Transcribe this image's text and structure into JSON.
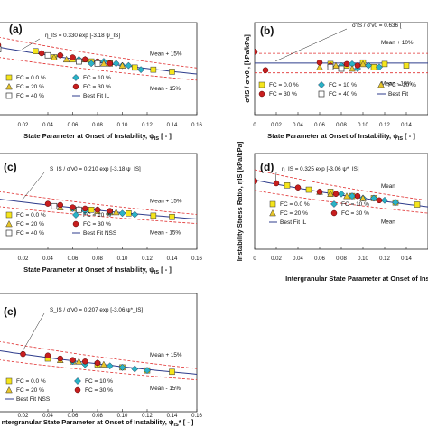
{
  "colors": {
    "fc0": "#f5e51c",
    "fc10": "#2ab3c6",
    "fc20": "#e8c62a",
    "fc30": "#c81e1e",
    "fc40": "#ffffff",
    "best_fit": "#2f3d8c",
    "bounds": "#e03030"
  },
  "marker_shapes": {
    "fc0": "square",
    "fc10": "diamond",
    "fc20": "triangle",
    "fc30": "circle",
    "fc40": "square-open"
  },
  "chart_data": [
    {
      "id": "a",
      "panel_label": "(a)",
      "type": "scatter",
      "xlabel_main": "State Parameter at Onset of Instability, ψ",
      "xlabel_sub": "IS",
      "xlabel_tail": " [ - ]",
      "ylabel": "",
      "xlim": [
        0,
        0.16
      ],
      "ylim": [
        0.0,
        0.45
      ],
      "xticks": [
        "0.02",
        "0.04",
        "0.06",
        "0.08",
        "0.10",
        "0.12",
        "0.14",
        "0.16"
      ],
      "equation": "η_IS = 0.330 exp [-3.18 ψ_IS]",
      "fit": {
        "a": 0.33,
        "b": -3.18
      },
      "upper_label": "Mean + 15%",
      "lower_label": "Mean - 15%",
      "band": 0.15,
      "legend": [
        "FC = 0.0 %",
        "FC = 10 %",
        "FC = 20 %",
        "FC = 30 %",
        "FC = 40 %",
        "Best Fit IL"
      ],
      "series": [
        {
          "name": "FC = 0.0 %",
          "key": "fc0",
          "x": [
            0.03,
            0.045,
            0.06,
            0.075,
            0.09,
            0.11,
            0.125,
            0.14
          ],
          "y": [
            0.31,
            0.28,
            0.27,
            0.26,
            0.25,
            0.23,
            0.22,
            0.21
          ]
        },
        {
          "name": "FC = 10 %",
          "key": "fc10",
          "x": [
            0.05,
            0.065,
            0.075,
            0.085,
            0.095,
            0.1,
            0.105,
            0.115
          ],
          "y": [
            0.29,
            0.27,
            0.25,
            0.26,
            0.25,
            0.24,
            0.24,
            0.22
          ]
        },
        {
          "name": "FC = 20 %",
          "key": "fc20",
          "x": [
            0.045,
            0.055,
            0.07,
            0.085,
            0.1
          ],
          "y": [
            0.28,
            0.27,
            0.27,
            0.25,
            0.24
          ]
        },
        {
          "name": "FC = 30 %",
          "key": "fc30",
          "x": [
            0.0,
            0.035,
            0.05,
            0.06,
            0.07,
            0.08,
            0.09
          ],
          "y": [
            0.34,
            0.3,
            0.29,
            0.28,
            0.27,
            0.26,
            0.25
          ]
        },
        {
          "name": "FC = 40 %",
          "key": "fc40",
          "x": [
            0.0,
            0.04,
            0.065,
            0.08
          ],
          "y": [
            0.32,
            0.29,
            0.26,
            0.25
          ]
        }
      ]
    },
    {
      "id": "b",
      "panel_label": "(b)",
      "type": "scatter",
      "xlabel_main": "State Parameter at Onset of Instability, ψ",
      "xlabel_sub": "IS",
      "xlabel_tail": " [ - ]",
      "ylabel": "σ'IS / σ'v0 , [kPa/kPa]",
      "xlim": [
        0,
        0.16
      ],
      "ylim": [
        0.3,
        0.9
      ],
      "xticks": [
        "0",
        "0.02",
        "0.04",
        "0.06",
        "0.08",
        "0.10",
        "0.12",
        "0.14"
      ],
      "equation": "σ'IS / σ'v0 = 0.636 [",
      "fit": {
        "a": 0.636,
        "b": 0
      },
      "upper_label": "Mean + 10%",
      "lower_label": "Mean - 10%",
      "band": 0.1,
      "legend": [
        "FC = 0.0 %",
        "FC = 10 %",
        "FC = 20 %",
        "FC = 30 %",
        "FC = 40 %",
        "Best Fit"
      ],
      "series": [
        {
          "name": "FC = 0.0 %",
          "key": "fc0",
          "x": [
            0.07,
            0.085,
            0.1,
            0.11,
            0.12,
            0.14
          ],
          "y": [
            0.63,
            0.62,
            0.64,
            0.61,
            0.63,
            0.62
          ]
        },
        {
          "name": "FC = 10 %",
          "key": "fc10",
          "x": [
            0.08,
            0.09,
            0.095,
            0.105,
            0.115
          ],
          "y": [
            0.62,
            0.63,
            0.6,
            0.62,
            0.61
          ]
        },
        {
          "name": "FC = 20 %",
          "key": "fc20",
          "x": [
            0.06,
            0.075,
            0.09,
            0.1
          ],
          "y": [
            0.61,
            0.62,
            0.6,
            0.63
          ]
        },
        {
          "name": "FC = 30 %",
          "key": "fc30",
          "x": [
            0.0,
            0.01,
            0.06,
            0.07,
            0.085,
            0.095
          ],
          "y": [
            0.71,
            0.59,
            0.64,
            0.62,
            0.63,
            0.62
          ]
        },
        {
          "name": "FC = 40 %",
          "key": "fc40",
          "x": [
            0.07,
            0.08
          ],
          "y": [
            0.61,
            0.6
          ]
        }
      ]
    },
    {
      "id": "c",
      "panel_label": "(c)",
      "type": "scatter",
      "xlabel_main": "State Parameter at Onset of Instability, ψ",
      "xlabel_sub": "IS",
      "xlabel_tail": " [ - ]",
      "ylabel": "",
      "xlim": [
        0,
        0.16
      ],
      "ylim": [
        0.0,
        0.4
      ],
      "xticks": [
        "0.02",
        "0.04",
        "0.06",
        "0.08",
        "0.10",
        "0.12",
        "0.14",
        "0.16"
      ],
      "equation": "S_IS / σ'v0 = 0.210 exp [-3.18 ψ_IS]",
      "fit": {
        "a": 0.21,
        "b": -3.18
      },
      "upper_label": "Mean + 15%",
      "lower_label": "Mean - 15%",
      "band": 0.15,
      "legend": [
        "FC = 0.0 %",
        "FC = 10 %",
        "FC = 20 %",
        "FC = 30 %",
        "FC = 40 %",
        "Best Fit NSS"
      ],
      "series": [
        {
          "name": "FC = 0.0 %",
          "key": "fc0",
          "x": [
            0.045,
            0.06,
            0.075,
            0.09,
            0.105,
            0.125,
            0.14
          ],
          "y": [
            0.18,
            0.17,
            0.165,
            0.155,
            0.15,
            0.14,
            0.135
          ]
        },
        {
          "name": "FC = 10 %",
          "key": "fc10",
          "x": [
            0.06,
            0.07,
            0.08,
            0.09,
            0.1,
            0.11
          ],
          "y": [
            0.17,
            0.16,
            0.165,
            0.155,
            0.15,
            0.145
          ]
        },
        {
          "name": "FC = 20 %",
          "key": "fc20",
          "x": [
            0.05,
            0.065,
            0.08,
            0.095
          ],
          "y": [
            0.175,
            0.17,
            0.16,
            0.155
          ]
        },
        {
          "name": "FC = 30 %",
          "key": "fc30",
          "x": [
            0.04,
            0.05,
            0.06,
            0.07,
            0.08,
            0.09
          ],
          "y": [
            0.19,
            0.185,
            0.175,
            0.17,
            0.165,
            0.16
          ]
        },
        {
          "name": "FC = 40 %",
          "key": "fc40",
          "x": [
            0.045,
            0.065
          ],
          "y": [
            0.18,
            0.165
          ]
        }
      ]
    },
    {
      "id": "d",
      "panel_label": "(d)",
      "type": "scatter",
      "xlabel_main": "Intergranular State Parameter at Onset of Instability",
      "xlabel_sub": "",
      "xlabel_tail": "",
      "ylabel": "Instability Stress Ratio, ηIS [kPa/kPa]",
      "xlim": [
        0,
        0.16
      ],
      "ylim": [
        0.0,
        0.45
      ],
      "xticks": [
        "0",
        "0.02",
        "0.04",
        "0.06",
        "0.08",
        "0.10",
        "0.12",
        "0.14"
      ],
      "equation": "η_IS = 0.325 exp [-3.06 ψ*_IS]",
      "fit": {
        "a": 0.325,
        "b": -3.06
      },
      "upper_label": "Mean",
      "lower_label": "Mean",
      "band": 0.15,
      "legend": [
        "FC = 0.0 %",
        "FC = 10 %",
        "FC = 20 %",
        "FC = 30 %",
        "Best Fit IL"
      ],
      "series": [
        {
          "name": "FC = 0.0 %",
          "key": "fc0",
          "x": [
            0.03,
            0.05,
            0.07,
            0.09,
            0.11,
            0.13,
            0.15
          ],
          "y": [
            0.3,
            0.28,
            0.27,
            0.25,
            0.24,
            0.22,
            0.21
          ]
        },
        {
          "name": "FC = 10 %",
          "key": "fc10",
          "x": [
            0.08,
            0.09,
            0.1,
            0.11,
            0.12,
            0.13
          ],
          "y": [
            0.26,
            0.25,
            0.24,
            0.24,
            0.23,
            0.22
          ]
        },
        {
          "name": "FC = 20 %",
          "key": "fc20",
          "x": [
            0.06,
            0.07,
            0.085,
            0.1
          ],
          "y": [
            0.27,
            0.26,
            0.25,
            0.24
          ]
        },
        {
          "name": "FC = 30 %",
          "key": "fc30",
          "x": [
            0.0,
            0.02,
            0.04,
            0.06,
            0.075,
            0.095,
            0.115
          ],
          "y": [
            0.32,
            0.31,
            0.29,
            0.27,
            0.26,
            0.25,
            0.23
          ]
        }
      ]
    },
    {
      "id": "e",
      "panel_label": "(e)",
      "type": "scatter",
      "xlabel_main": "ntergranular State Parameter at Onset of Instability, ψ",
      "xlabel_sub": "IS",
      "xlabel_tail": "* [ - ]",
      "ylabel": "",
      "xlim": [
        0,
        0.16
      ],
      "ylim": [
        0.0,
        0.4
      ],
      "xticks": [
        "0.02",
        "0.04",
        "0.06",
        "0.08",
        "0.10",
        "0.12",
        "0.14",
        "0.16"
      ],
      "equation": "S_IS / σ'v0 = 0.207 exp [-3.06 ψ*_IS]",
      "fit": {
        "a": 0.207,
        "b": -3.06
      },
      "upper_label": "Mean + 15%",
      "lower_label": "Mean - 15%",
      "band": 0.15,
      "legend": [
        "FC = 0.0 %",
        "FC = 10 %",
        "FC = 20 %",
        "FC = 30 %",
        "Best Fit NSS"
      ],
      "series": [
        {
          "name": "FC = 0.0 %",
          "key": "fc0",
          "x": [
            0.04,
            0.06,
            0.08,
            0.1,
            0.12,
            0.14
          ],
          "y": [
            0.18,
            0.17,
            0.16,
            0.15,
            0.14,
            0.135
          ]
        },
        {
          "name": "FC = 10 %",
          "key": "fc10",
          "x": [
            0.06,
            0.07,
            0.08,
            0.09,
            0.1,
            0.11,
            0.12
          ],
          "y": [
            0.17,
            0.16,
            0.165,
            0.155,
            0.15,
            0.145,
            0.14
          ]
        },
        {
          "name": "FC = 20 %",
          "key": "fc20",
          "x": [
            0.05,
            0.065,
            0.085
          ],
          "y": [
            0.175,
            0.17,
            0.16
          ]
        },
        {
          "name": "FC = 30 %",
          "key": "fc30",
          "x": [
            0.02,
            0.04,
            0.05,
            0.06,
            0.07,
            0.08
          ],
          "y": [
            0.195,
            0.19,
            0.18,
            0.175,
            0.17,
            0.165
          ]
        }
      ]
    }
  ]
}
